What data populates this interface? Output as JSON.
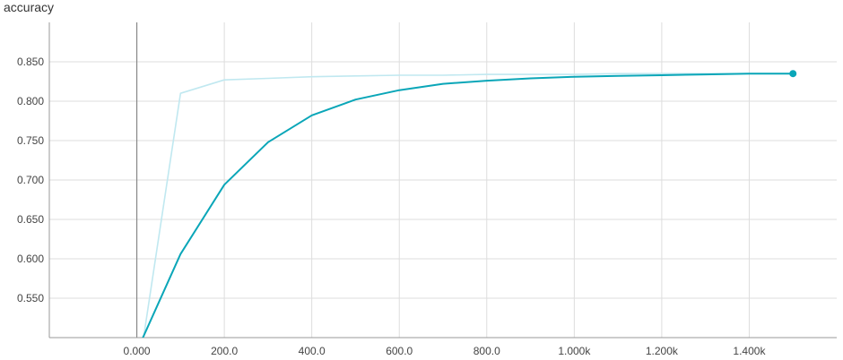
{
  "chart_data": {
    "type": "line",
    "title": "accuracy",
    "xlabel": "",
    "ylabel": "",
    "xlim": [
      -200,
      1600
    ],
    "ylim": [
      0.5,
      0.9
    ],
    "grid": true,
    "x_ticks": [
      0,
      200,
      400,
      600,
      800,
      1000,
      1200,
      1400
    ],
    "x_tick_labels": [
      "0.000",
      "200.0",
      "400.0",
      "600.0",
      "800.0",
      "1.000k",
      "1.200k",
      "1.400k"
    ],
    "y_ticks": [
      0.55,
      0.6,
      0.65,
      0.7,
      0.75,
      0.8,
      0.85
    ],
    "y_tick_labels": [
      "0.550",
      "0.600",
      "0.650",
      "0.700",
      "0.750",
      "0.800",
      "0.850"
    ],
    "series": [
      {
        "role": "raw",
        "color": "#c0e8f0",
        "x": [
          10,
          100,
          200,
          300,
          400,
          500,
          600,
          700,
          800,
          900,
          1000,
          1100,
          1200,
          1300,
          1400,
          1500
        ],
        "y": [
          0.48,
          0.81,
          0.827,
          0.829,
          0.831,
          0.832,
          0.833,
          0.833,
          0.834,
          0.834,
          0.834,
          0.835,
          0.835,
          0.835,
          0.835,
          0.835
        ]
      },
      {
        "role": "smoothed",
        "color": "#0aa6b8",
        "x": [
          10,
          100,
          200,
          300,
          400,
          500,
          600,
          700,
          800,
          900,
          1000,
          1100,
          1200,
          1300,
          1400,
          1500
        ],
        "y": [
          0.495,
          0.606,
          0.694,
          0.748,
          0.782,
          0.802,
          0.814,
          0.822,
          0.826,
          0.829,
          0.831,
          0.832,
          0.833,
          0.834,
          0.835,
          0.835
        ]
      }
    ]
  }
}
